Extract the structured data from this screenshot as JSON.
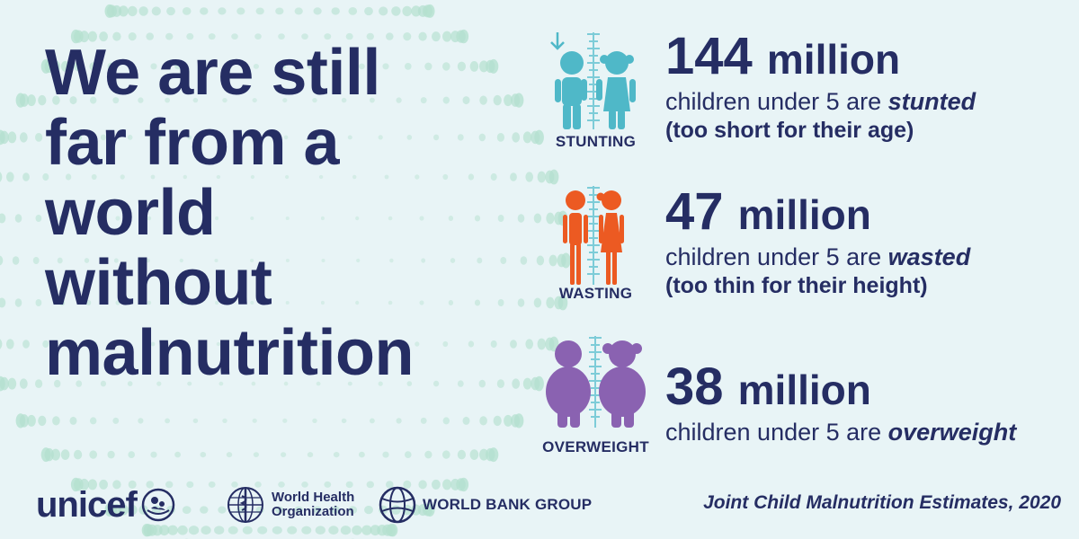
{
  "headline": {
    "lines": [
      "We are still",
      "far from a",
      "world",
      "without",
      "malnutrition"
    ]
  },
  "stats": [
    {
      "category": "STUNTING",
      "amount": "144",
      "unit": "million",
      "desc_prefix": "children under 5 are ",
      "desc_emphasis": "stunted",
      "note": "(too short for their age)",
      "color": "#4fb8c8"
    },
    {
      "category": "WASTING",
      "amount": "47",
      "unit": "million",
      "desc_prefix": "children under 5 are ",
      "desc_emphasis": "wasted",
      "note": "(too thin for their height)",
      "color": "#ec5a22"
    },
    {
      "category": "OVERWEIGHT",
      "amount": "38",
      "unit": "million",
      "desc_prefix": "children under 5 are ",
      "desc_emphasis": "overweight",
      "note": "",
      "color": "#8a62b1"
    }
  ],
  "logos": {
    "unicef": "unicef",
    "who_line1": "World Health",
    "who_line2": "Organization",
    "world_bank": "WORLD BANK GROUP"
  },
  "source": "Joint Child Malnutrition Estimates, 2020",
  "colors": {
    "background": "#e8f4f6",
    "navy": "#252d63",
    "dots": "#b4e0cf",
    "ruler": "#7dccd8"
  }
}
